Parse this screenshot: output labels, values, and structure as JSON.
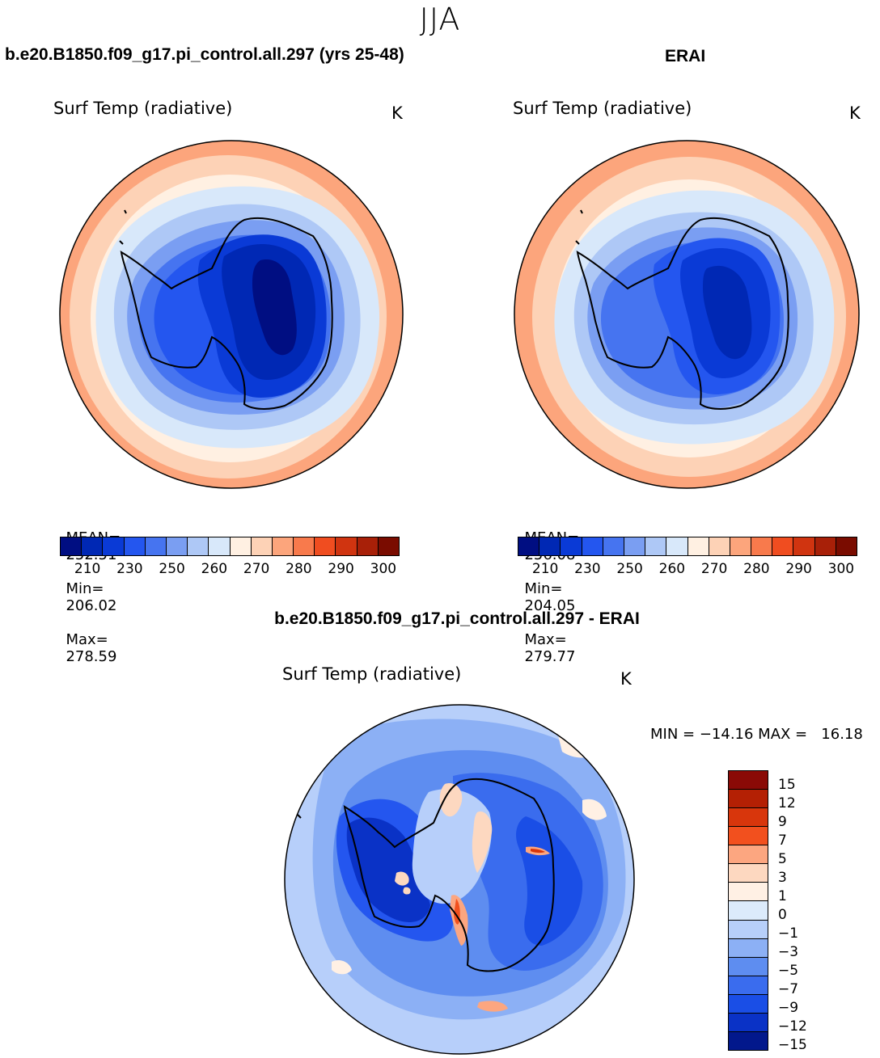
{
  "season": "JJA",
  "left_panel": {
    "case_title": "b.e20.B1850.f09_g17.pi_control.all.297 (yrs 25-48)",
    "variable": "Surf Temp (radiative)",
    "units": "K",
    "mean_label": "MEAN=",
    "mean": "252.51",
    "min_label": "Min=",
    "min": "206.02",
    "max_label": "Max=",
    "max": "278.59"
  },
  "right_panel": {
    "case_title": "ERAI",
    "variable": "Surf Temp (radiative)",
    "units": "K",
    "mean_label": "MEAN=",
    "mean": "256.08",
    "min_label": "Min=",
    "min": "204.05",
    "max_label": "Max=",
    "max": "279.77"
  },
  "abs_colorbar": {
    "colors": [
      "#000e82",
      "#0028b4",
      "#0a3ad6",
      "#2456ef",
      "#4674f0",
      "#7a9ef2",
      "#aec8f6",
      "#d8e8fa",
      "#fff0e2",
      "#fdd2b6",
      "#fca57c",
      "#f87a4c",
      "#f04d20",
      "#d03410",
      "#a82008",
      "#7a0c00"
    ],
    "tick_labels": [
      "210",
      "230",
      "250",
      "260",
      "270",
      "280",
      "290",
      "300"
    ]
  },
  "diff_panel": {
    "title": "b.e20.B1850.f09_g17.pi_control.all.297 - ERAI",
    "variable": "Surf Temp (radiative)",
    "units": "K",
    "minmax_text": "MIN = −14.16 MAX =   16.18"
  },
  "diff_colorbar": {
    "colors_top_to_bottom": [
      "#8a0a06",
      "#b42004",
      "#d8360c",
      "#f2501e",
      "#fca680",
      "#fdd8c0",
      "#fff0e4",
      "#dcebfb",
      "#b7cffa",
      "#8cb0f5",
      "#5e8df0",
      "#3a6cee",
      "#1a4ee6",
      "#0a32c6",
      "#02188c"
    ],
    "tick_labels": [
      "15",
      "12",
      "9",
      "7",
      "5",
      "3",
      "1",
      "0",
      "−1",
      "−3",
      "−5",
      "−7",
      "−9",
      "−12",
      "−15"
    ]
  }
}
